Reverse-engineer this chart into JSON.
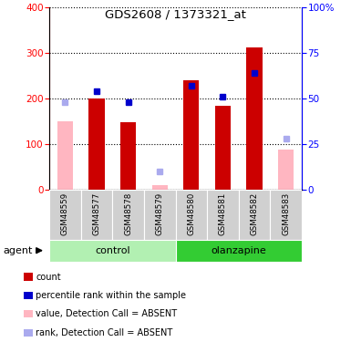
{
  "title": "GDS2608 / 1373321_at",
  "samples": [
    "GSM48559",
    "GSM48577",
    "GSM48578",
    "GSM48579",
    "GSM48580",
    "GSM48581",
    "GSM48582",
    "GSM48583"
  ],
  "absent": [
    true,
    false,
    false,
    true,
    false,
    false,
    false,
    true
  ],
  "count_values": [
    150,
    200,
    148,
    10,
    240,
    183,
    312,
    88
  ],
  "rank_values": [
    48,
    54,
    48,
    10,
    57,
    51,
    64,
    28
  ],
  "groups": [
    {
      "label": "control",
      "indices": [
        0,
        1,
        2,
        3
      ],
      "color": "#b2f0b2"
    },
    {
      "label": "olanzapine",
      "indices": [
        4,
        5,
        6,
        7
      ],
      "color": "#33cc33"
    }
  ],
  "bar_color_present": "#cc0000",
  "bar_color_absent": "#ffb6c1",
  "dot_color_present": "#0000cc",
  "dot_color_absent": "#aaaaee",
  "ylim_left": [
    0,
    400
  ],
  "ylim_right": [
    0,
    100
  ],
  "left_ticks": [
    0,
    100,
    200,
    300,
    400
  ],
  "right_ticks": [
    0,
    25,
    50,
    75,
    100
  ],
  "right_tick_labels": [
    "0",
    "25",
    "50",
    "75",
    "100%"
  ],
  "agent_label": "agent",
  "legend_items": [
    {
      "color": "#cc0000",
      "label": "count"
    },
    {
      "color": "#0000cc",
      "label": "percentile rank within the sample"
    },
    {
      "color": "#ffb6c1",
      "label": "value, Detection Call = ABSENT"
    },
    {
      "color": "#aaaaee",
      "label": "rank, Detection Call = ABSENT"
    }
  ]
}
